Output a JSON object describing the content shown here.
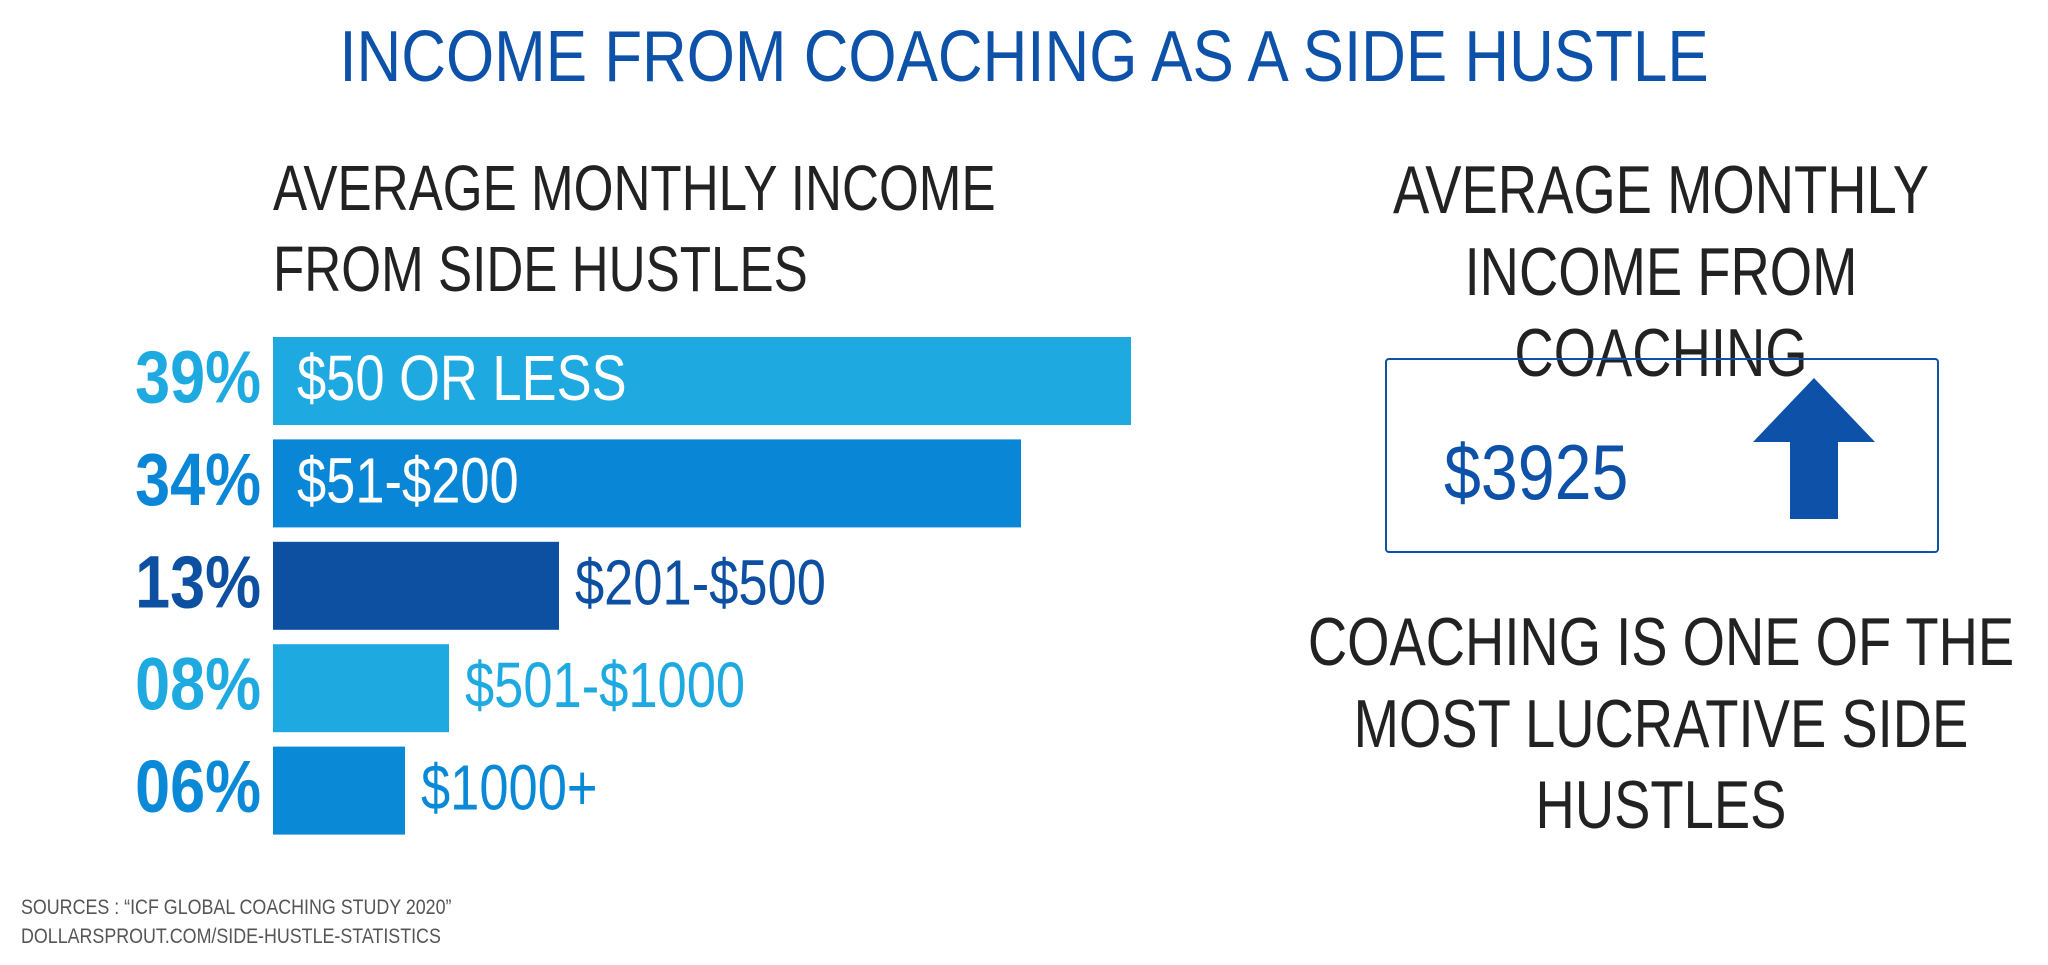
{
  "title": "INCOME FROM COACHING AS A SIDE HUSTLE",
  "chart_data": {
    "type": "bar",
    "orientation": "horizontal",
    "title": "AVERAGE MONTHLY INCOME FROM SIDE HUSTLES",
    "categories": [
      "$50 OR LESS",
      "$51-$200",
      "$201-$500",
      "$501-$1000",
      "$1000+"
    ],
    "values": [
      39,
      34,
      13,
      8,
      6
    ],
    "value_labels": [
      "39%",
      "34%",
      "13%",
      "08%",
      "06%"
    ],
    "colors": [
      "#1eaae0",
      "#0a86d6",
      "#0d4fa0",
      "#1eaae0",
      "#0a8ad6"
    ]
  },
  "coaching": {
    "heading": "AVERAGE MONTHLY INCOME FROM COACHING",
    "amount": "$3925",
    "note": "COACHING IS ONE OF THE MOST LUCRATIVE SIDE HUSTLES"
  },
  "sources": [
    "SOURCES : “ICF GLOBAL COACHING STUDY 2020”",
    "DOLLARSPROUT.COM/SIDE-HUSTLE-STATISTICS"
  ]
}
